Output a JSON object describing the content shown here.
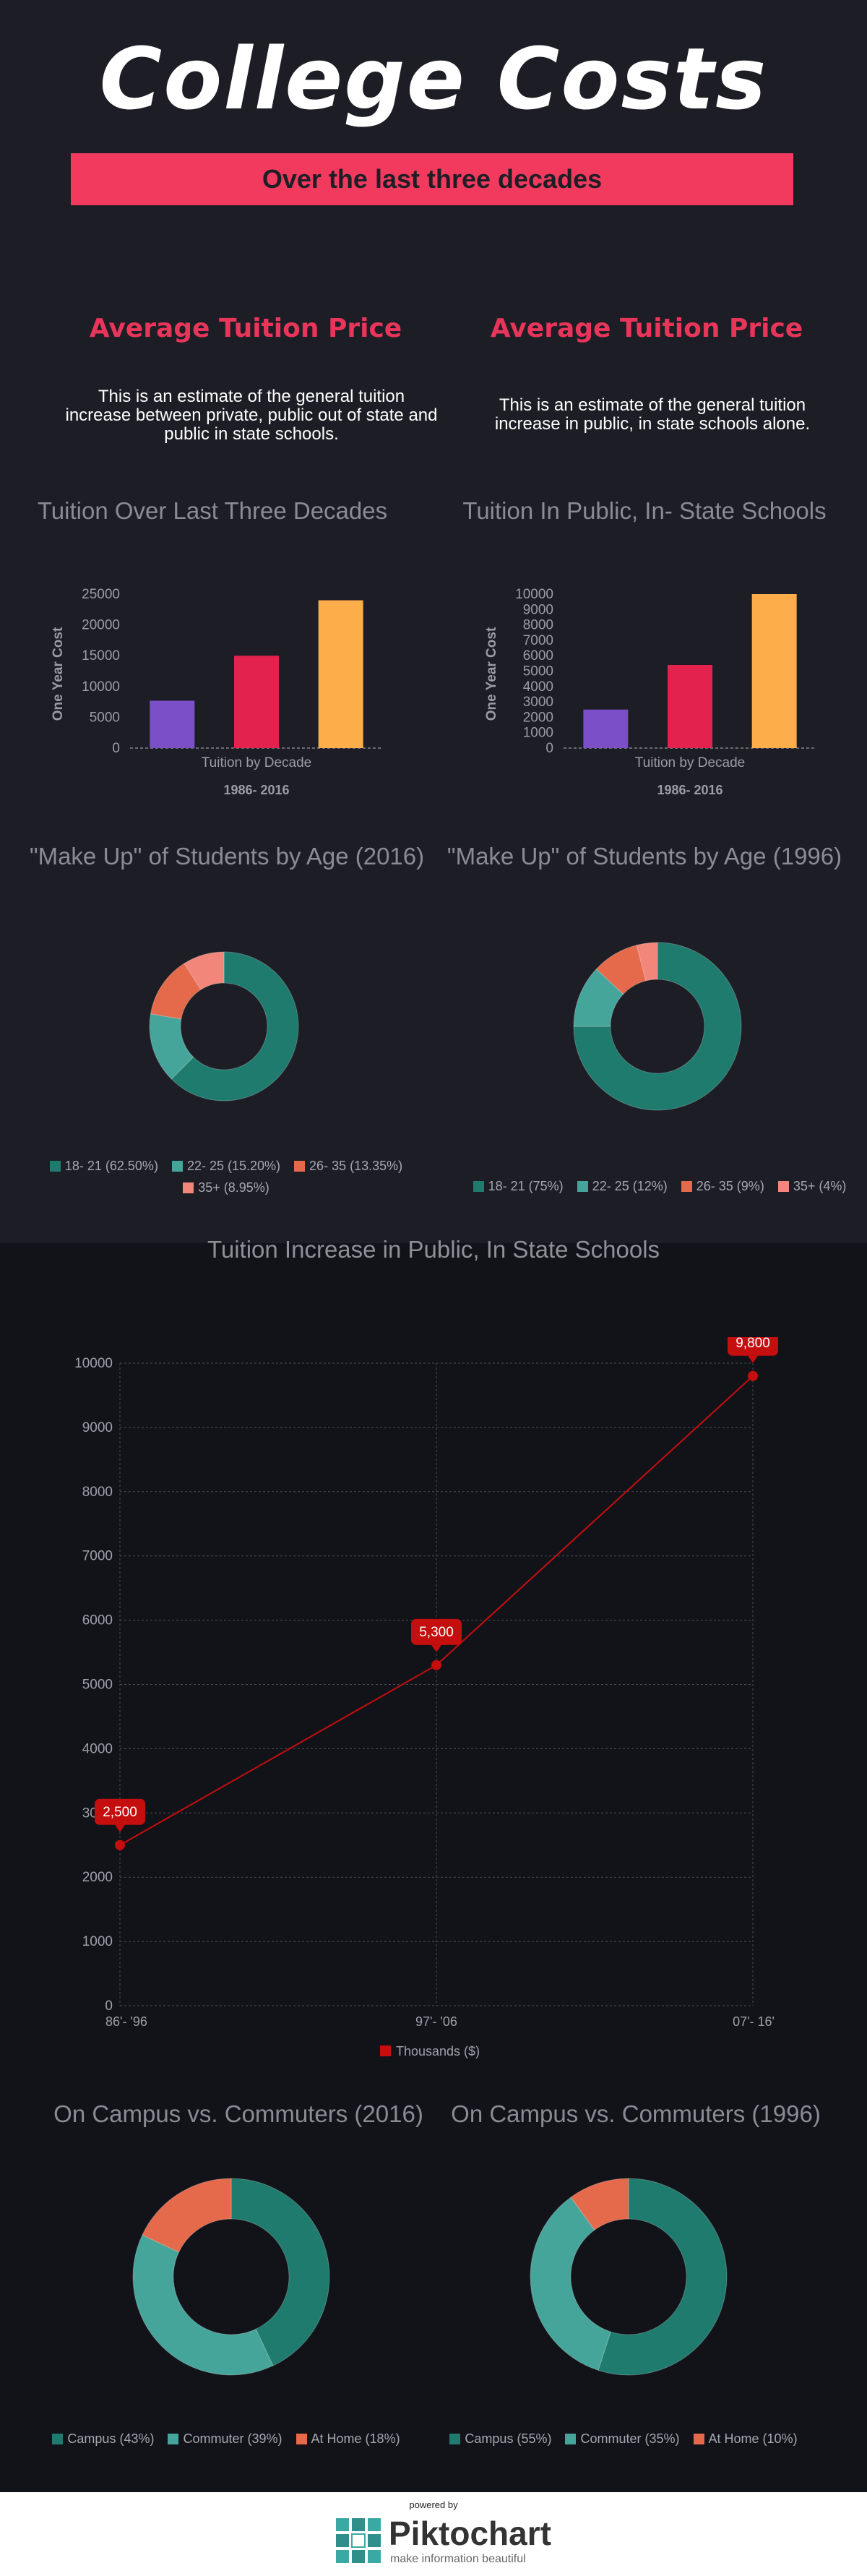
{
  "header": {
    "title": "College Costs",
    "subtitle": "Over the last three decades"
  },
  "left": {
    "heading": "Average Tuition Price",
    "description": "This is an estimate of the general tuition increase between private, public out of state and public in state schools.",
    "chart_title": "Tuition Over Last Three Decades",
    "pie_title": "\"Make Up\" of Students by Age (2016)"
  },
  "right": {
    "heading": "Average Tuition Price",
    "description": "This is an estimate of the general tuition increase in public, in state schools alone.",
    "chart_title": "Tuition In Public, In- State Schools",
    "pie_title": "\"Make Up\" of Students by Age (1996)"
  },
  "line_section": {
    "title": "Tuition Increase in Public, In State Schools"
  },
  "campus": {
    "title_2016": "On Campus vs. Commuters (2016)",
    "title_1996": "On Campus vs. Commuters (1996)"
  },
  "footer": {
    "powered_by": "powered by",
    "brand": "Piktochart",
    "tagline": "make information beautiful"
  },
  "colors": {
    "accent": "#f23a5e",
    "teal_dark": "#1e7b6e",
    "teal_light": "#46a59a",
    "coral": "#e56a4b",
    "salmon": "#f2867a",
    "purple": "#7b4fc7",
    "crimson": "#e3224e",
    "orange": "#fdad4a",
    "line_red": "#c50e0e"
  },
  "chart_data": [
    {
      "type": "bar",
      "categories": [
        "",
        "",
        ""
      ],
      "values": [
        7700,
        15000,
        24000
      ],
      "colors": [
        "#7b4fc7",
        "#e3224e",
        "#fdad4a"
      ],
      "xlabel": "Tuition by Decade",
      "ylabel": "One Year Cost",
      "footnote": "1986- 2016",
      "ylim": [
        0,
        25000
      ],
      "yticks": [
        0,
        5000,
        10000,
        15000,
        20000,
        25000
      ]
    },
    {
      "type": "bar",
      "categories": [
        "",
        "",
        ""
      ],
      "values": [
        2500,
        5400,
        10000
      ],
      "colors": [
        "#7b4fc7",
        "#e3224e",
        "#fdad4a"
      ],
      "xlabel": "Tuition by Decade",
      "ylabel": "One Year Cost",
      "footnote": "1986- 2016",
      "ylim": [
        0,
        10000
      ],
      "yticks": [
        0,
        1000,
        2000,
        3000,
        4000,
        5000,
        6000,
        7000,
        8000,
        9000,
        10000
      ]
    },
    {
      "type": "pie",
      "donut": true,
      "labels": [
        "18- 21 (62.50%)",
        "22- 25 (15.20%)",
        "26- 35 (13.35%)",
        "35+ (8.95%)"
      ],
      "values": [
        62.5,
        15.2,
        13.35,
        8.95
      ],
      "colors": [
        "#1e7b6e",
        "#46a59a",
        "#e56a4b",
        "#f2867a"
      ]
    },
    {
      "type": "pie",
      "donut": true,
      "labels": [
        "18- 21 (75%)",
        "22- 25 (12%)",
        "26- 35 (9%)",
        "35+ (4%)"
      ],
      "values": [
        75,
        12,
        9,
        4
      ],
      "colors": [
        "#1e7b6e",
        "#46a59a",
        "#e56a4b",
        "#f2867a"
      ]
    },
    {
      "type": "line",
      "x": [
        "86'- '96",
        "97'- '06",
        "07'- 16'"
      ],
      "series": [
        {
          "name": "Thousands ($)",
          "values": [
            2500,
            5300,
            9800
          ],
          "labels": [
            "2,500",
            "5,300",
            "9,800"
          ]
        }
      ],
      "ylim": [
        0,
        10000
      ],
      "yticks": [
        0,
        1000,
        2000,
        3000,
        4000,
        5000,
        6000,
        7000,
        8000,
        9000,
        10000
      ],
      "grid": true,
      "legend": "bottom"
    },
    {
      "type": "pie",
      "donut": true,
      "labels": [
        "Campus (43%)",
        "Commuter (39%)",
        "At Home (18%)"
      ],
      "values": [
        43,
        39,
        18
      ],
      "colors": [
        "#1e7b6e",
        "#46a59a",
        "#e56a4b"
      ]
    },
    {
      "type": "pie",
      "donut": true,
      "labels": [
        "Campus (55%)",
        "Commuter (35%)",
        "At Home (10%)"
      ],
      "values": [
        55,
        35,
        10
      ],
      "colors": [
        "#1e7b6e",
        "#46a59a",
        "#e56a4b"
      ]
    }
  ]
}
